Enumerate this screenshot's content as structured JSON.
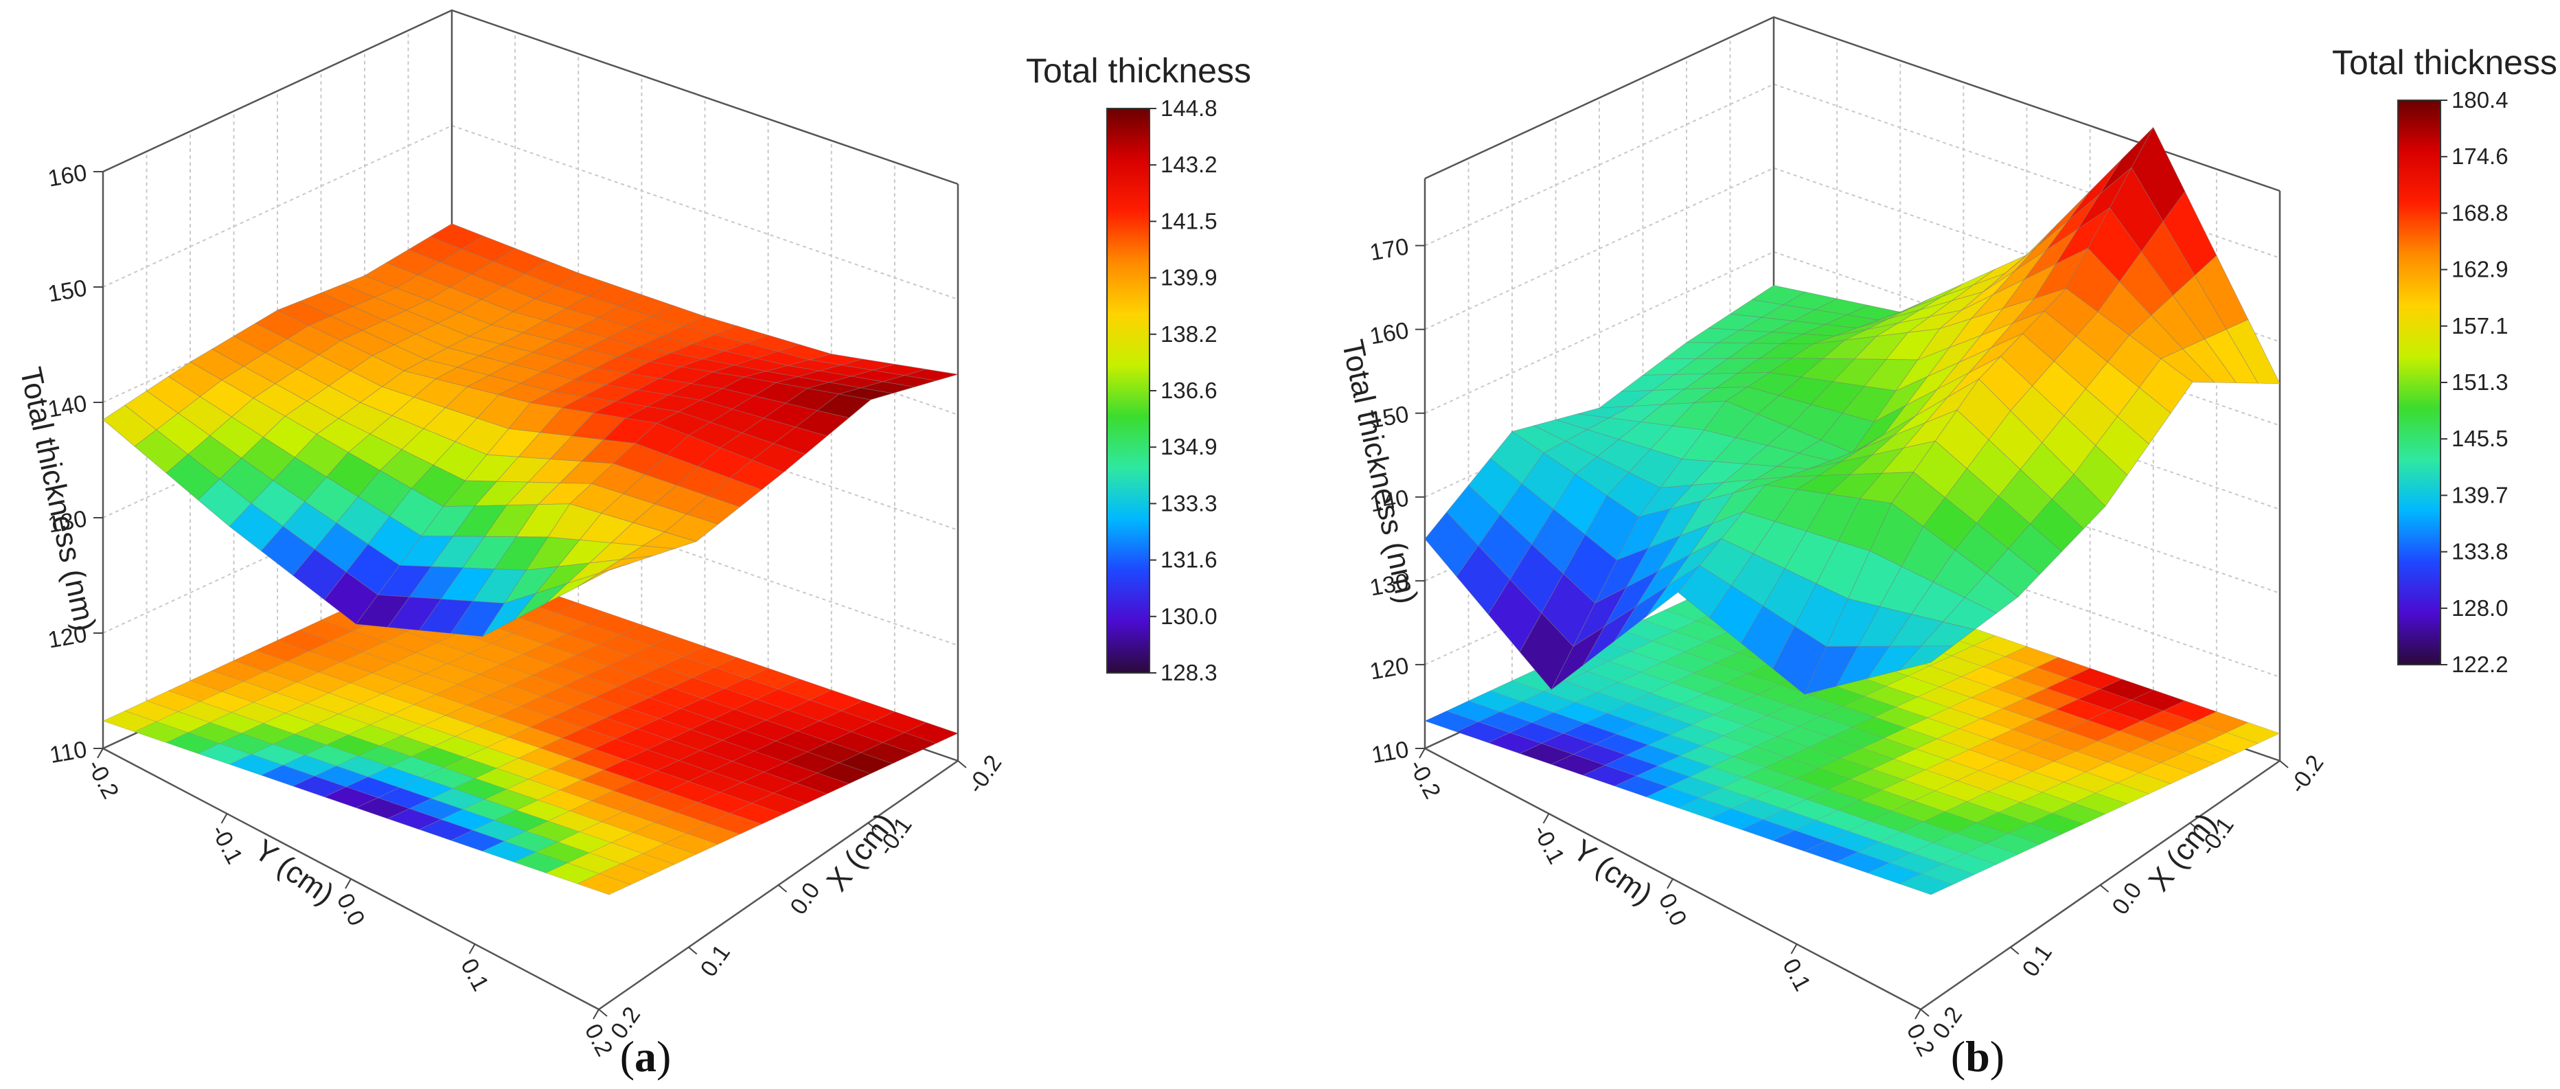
{
  "chart_data": [
    {
      "type": "surface3d",
      "panel_label_prefix": "(",
      "panel_label_letter": "a",
      "panel_label_suffix": ")",
      "zlabel": "Total thickness (nm)",
      "xlabel": "X (cm)",
      "ylabel": "Y (cm)",
      "z_ticks": [
        "110",
        "120",
        "130",
        "140",
        "150",
        "160"
      ],
      "zlim": [
        110,
        160
      ],
      "x_ticks": [
        "-0.2",
        "-0.1",
        "0.0",
        "0.1",
        "0.2"
      ],
      "y_ticks": [
        "-0.2",
        "-0.1",
        "0.0",
        "0.1",
        "0.2"
      ],
      "colorbar": {
        "title": "Total thickness",
        "labels": [
          "144.8",
          "143.2",
          "141.5",
          "139.9",
          "138.2",
          "136.6",
          "134.9",
          "133.3",
          "131.6",
          "130.0",
          "128.3"
        ],
        "min": 128.3,
        "max": 144.8
      },
      "colormap": [
        "#2a0a3a",
        "#4b0bd0",
        "#1e48ff",
        "#00b8ff",
        "#2fe8a0",
        "#3cdc2e",
        "#c6f000",
        "#ffd200",
        "#ff8a00",
        "#ff1e00",
        "#d80000",
        "#6b0000"
      ],
      "x": [
        -0.2,
        -0.1,
        0.0,
        0.1,
        0.2
      ],
      "y": [
        -0.2,
        -0.1,
        0.0,
        0.1,
        0.2
      ],
      "z": [
        [
          141.5,
          141.0,
          141.0,
          141.5,
          143.5
        ],
        [
          140.5,
          140.0,
          141.0,
          143.0,
          144.8
        ],
        [
          141.0,
          139.5,
          140.5,
          142.5,
          142.0
        ],
        [
          140.0,
          137.5,
          135.0,
          139.0,
          139.5
        ],
        [
          138.5,
          133.0,
          128.3,
          131.0,
          140.5
        ]
      ]
    },
    {
      "type": "surface3d",
      "panel_label_prefix": "(",
      "panel_label_letter": "b",
      "panel_label_suffix": ")",
      "zlabel": "Total thickness (nm)",
      "xlabel": "X (cm)",
      "ylabel": "Y (cm)",
      "z_ticks": [
        "110",
        "120",
        "130",
        "140",
        "150",
        "160",
        "170"
      ],
      "zlim": [
        110,
        178
      ],
      "x_ticks": [
        "-0.2",
        "-0.1",
        "0.0",
        "0.1",
        "0.2"
      ],
      "y_ticks": [
        "-0.2",
        "-0.1",
        "0.0",
        "0.1",
        "0.2"
      ],
      "colorbar": {
        "title": "Total thickness",
        "labels": [
          "180.4",
          "174.6",
          "168.8",
          "162.9",
          "157.1",
          "151.3",
          "145.5",
          "139.7",
          "133.8",
          "128.0",
          "122.2"
        ],
        "min": 122.2,
        "max": 180.4
      },
      "colormap": [
        "#2a0a3a",
        "#4b0bd0",
        "#1e48ff",
        "#00b8ff",
        "#2fe8a0",
        "#3cdc2e",
        "#c6f000",
        "#ffd200",
        "#ff8a00",
        "#ff1e00",
        "#d80000",
        "#6b0000"
      ],
      "x": [
        -0.2,
        -0.1,
        0.0,
        0.1,
        0.2
      ],
      "y": [
        -0.2,
        -0.1,
        0.0,
        0.1,
        0.2
      ],
      "z": [
        [
          146.0,
          148.0,
          160.0,
          180.4,
          155.0
        ],
        [
          144.0,
          149.0,
          156.0,
          166.0,
          160.0
        ],
        [
          141.0,
          147.0,
          146.0,
          160.0,
          150.0
        ],
        [
          143.0,
          138.0,
          147.0,
          150.0,
          144.0
        ],
        [
          135.0,
          122.2,
          139.0,
          132.0,
          141.0
        ]
      ]
    }
  ]
}
